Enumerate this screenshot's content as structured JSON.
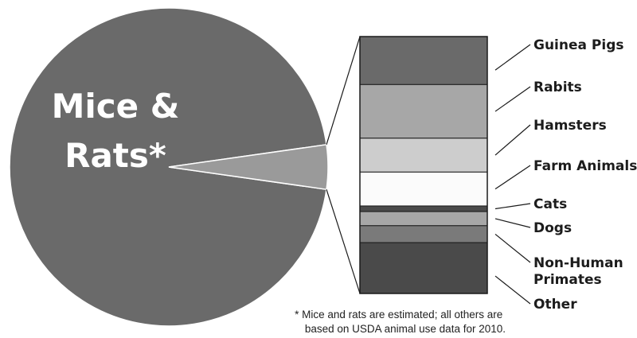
{
  "chart_data": {
    "type": "pie",
    "pie": {
      "slices": [
        {
          "label_lines": [
            "Mice &",
            "Rats*"
          ],
          "value": 95.5,
          "color": "#6a6a6a"
        },
        {
          "label_lines": [],
          "value": 4.5,
          "color": "#9a9a9a"
        }
      ]
    },
    "breakdown": {
      "type": "stacked-bar",
      "segments": [
        {
          "label": "Guinea Pigs",
          "value": 17,
          "color": "#6a6a6a"
        },
        {
          "label": "Rabits",
          "value": 19,
          "color": "#a7a7a7"
        },
        {
          "label": "Hamsters",
          "value": 12,
          "color": "#cdcdcd"
        },
        {
          "label": "Farm Animals",
          "value": 12,
          "color": "#fbfbfb"
        },
        {
          "label": "Cats",
          "value": 2,
          "color": "#4a4a4a"
        },
        {
          "label": "Dogs",
          "value": 5,
          "color": "#a7a7a7"
        },
        {
          "label": "Non-Human Primates",
          "value": 6,
          "color": "#7a7a7a",
          "label_lines": [
            "Non-Human",
            "Primates"
          ]
        },
        {
          "label": "Other",
          "value": 18,
          "color": "#4a4a4a"
        }
      ]
    },
    "footnote": [
      "* Mice and rats are estimated; all others are",
      "based on USDA animal use data for 2010."
    ]
  }
}
